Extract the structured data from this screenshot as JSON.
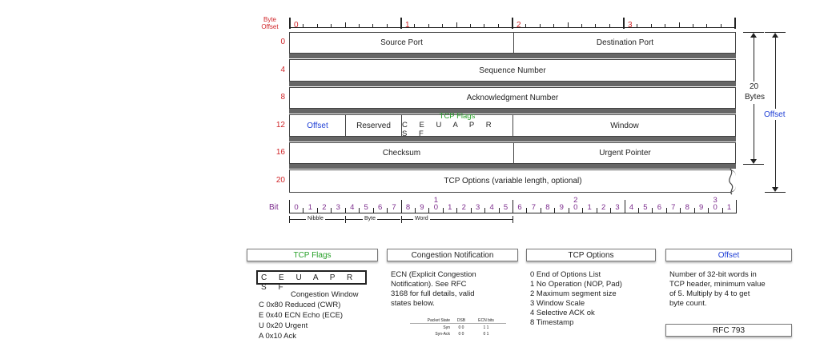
{
  "header": {
    "byte_offset": "Byte Offset",
    "byte_markers": [
      "0",
      "1",
      "2",
      "3"
    ]
  },
  "offsets": [
    "0",
    "4",
    "8",
    "12",
    "16",
    "20"
  ],
  "fields": {
    "source_port": "Source Port",
    "destination_port": "Destination Port",
    "sequence_number": "Sequence Number",
    "acknowledgment_number": "Acknowledgment Number",
    "offset": "Offset",
    "reserved": "Reserved",
    "tcp_flags": "TCP Flags",
    "flag_letters": "C E U A P R S F",
    "window": "Window",
    "checksum": "Checksum",
    "urgent_pointer": "Urgent Pointer",
    "tcp_options": "TCP Options (variable length, optional)"
  },
  "right_labels": {
    "twenty": "20",
    "bytes": "Bytes",
    "offset": "Offset"
  },
  "bits": {
    "label": "Bit",
    "digits": [
      "0",
      "1",
      "2",
      "3",
      "4",
      "5",
      "6",
      "7",
      "8",
      "9",
      "1",
      "0",
      "1",
      "2",
      "3",
      "4",
      "5",
      "6",
      "7",
      "8",
      "9",
      "2",
      "0",
      "1",
      "2",
      "3",
      "4",
      "5",
      "6",
      "7",
      "8",
      "9",
      "3",
      "0",
      "1"
    ],
    "nibble": "Nibble",
    "byte": "Byte",
    "word": "Word"
  },
  "cards": {
    "tcp_flags": {
      "title": "TCP Flags",
      "letters": "C E U A P R S F",
      "subtitle": "Congestion Window",
      "lines": [
        "C  0x80 Reduced (CWR)",
        "E  0x40 ECN Echo (ECE)",
        "U  0x20 Urgent",
        "A  0x10 Ack"
      ]
    },
    "congestion": {
      "title": "Congestion Notification",
      "lines": [
        "ECN (Explicit Congestion",
        "Notification).  See RFC",
        "3168 for full details, valid",
        "states below."
      ],
      "table_header": [
        "Packet State",
        "DSB",
        "ECN bits"
      ],
      "table_rows": [
        [
          "Syn",
          "0 0",
          "1 1"
        ],
        [
          "Syn-Ack",
          "0 0",
          "0 1"
        ]
      ]
    },
    "tcp_options": {
      "title": "TCP Options",
      "lines": [
        "0 End of Options List",
        "1 No Operation (NOP, Pad)",
        "2 Maximum segment size",
        "3 Window Scale",
        "4 Selective ACK ok",
        "8 Timestamp"
      ]
    },
    "offset": {
      "title": "Offset",
      "lines": [
        "Number of 32-bit words in",
        "TCP header, minimum value",
        "of 5.  Multiply by 4 to get",
        "byte count."
      ],
      "rfc": "RFC 793"
    }
  }
}
